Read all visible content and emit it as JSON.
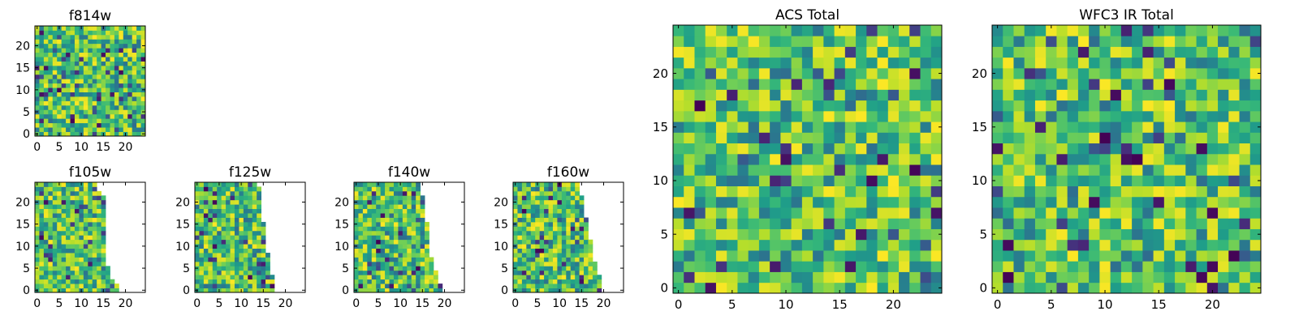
{
  "figure": {
    "background": "#ffffff",
    "colormap": "viridis",
    "colors": {
      "frame": "#000000",
      "masked": "#ffffff"
    }
  },
  "chart_data": [
    {
      "type": "heatmap",
      "title": "f814w",
      "grid_size": [
        25,
        25
      ],
      "xlim": [
        -0.5,
        24.5
      ],
      "ylim": [
        -0.5,
        24.5
      ],
      "xticks": [
        0,
        5,
        10,
        15,
        20
      ],
      "yticks": [
        0,
        5,
        10,
        15,
        20
      ],
      "xlabel": "",
      "ylabel": "",
      "coverage": "full",
      "seed": 814
    },
    {
      "type": "heatmap",
      "title": "f105w",
      "grid_size": [
        25,
        25
      ],
      "xlim": [
        -0.5,
        24.5
      ],
      "ylim": [
        -0.5,
        24.5
      ],
      "xticks": [
        0,
        5,
        10,
        15,
        20
      ],
      "yticks": [
        0,
        5,
        10,
        15,
        20
      ],
      "xlabel": "",
      "ylabel": "",
      "coverage": "partial",
      "max_column_by_row": [
        18,
        18,
        17,
        16,
        16,
        16,
        15,
        15,
        15,
        15,
        15,
        15,
        15,
        15,
        15,
        15,
        15,
        15,
        15,
        15,
        15,
        15,
        14,
        13,
        13
      ],
      "seed": 105
    },
    {
      "type": "heatmap",
      "title": "f125w",
      "grid_size": [
        25,
        25
      ],
      "xlim": [
        -0.5,
        24.5
      ],
      "ylim": [
        -0.5,
        24.5
      ],
      "xticks": [
        0,
        5,
        10,
        15,
        20
      ],
      "yticks": [
        0,
        5,
        10,
        15,
        20
      ],
      "xlabel": "",
      "ylabel": "",
      "coverage": "partial",
      "max_column_by_row": [
        17,
        17,
        17,
        17,
        16,
        16,
        16,
        16,
        16,
        15,
        15,
        15,
        15,
        15,
        15,
        15,
        14,
        14,
        14,
        14,
        14,
        14,
        14,
        14,
        13
      ],
      "seed": 125
    },
    {
      "type": "heatmap",
      "title": "f140w",
      "grid_size": [
        25,
        25
      ],
      "xlim": [
        -0.5,
        24.5
      ],
      "ylim": [
        -0.5,
        24.5
      ],
      "xticks": [
        0,
        5,
        10,
        15,
        20
      ],
      "yticks": [
        0,
        5,
        10,
        15,
        20
      ],
      "xlabel": "",
      "ylabel": "",
      "coverage": "partial",
      "max_column_by_row": [
        19,
        19,
        18,
        18,
        18,
        17,
        17,
        17,
        16,
        16,
        16,
        16,
        16,
        16,
        16,
        16,
        15,
        15,
        15,
        15,
        15,
        15,
        14,
        14,
        14
      ],
      "seed": 140
    },
    {
      "type": "heatmap",
      "title": "f160w",
      "grid_size": [
        25,
        25
      ],
      "xlim": [
        -0.5,
        24.5
      ],
      "ylim": [
        -0.5,
        24.5
      ],
      "xticks": [
        0,
        5,
        10,
        15,
        20
      ],
      "yticks": [
        0,
        5,
        10,
        15,
        20
      ],
      "xlabel": "",
      "ylabel": "",
      "coverage": "partial",
      "max_column_by_row": [
        19,
        19,
        19,
        19,
        18,
        18,
        18,
        17,
        17,
        17,
        17,
        17,
        16,
        16,
        16,
        16,
        16,
        15,
        15,
        15,
        15,
        15,
        14,
        14,
        14
      ],
      "seed": 160
    },
    {
      "type": "heatmap",
      "title": "ACS Total",
      "grid_size": [
        25,
        25
      ],
      "xlim": [
        -0.5,
        24.5
      ],
      "ylim": [
        -0.5,
        24.5
      ],
      "xticks": [
        0,
        5,
        10,
        15,
        20
      ],
      "yticks": [
        0,
        5,
        10,
        15,
        20
      ],
      "xlabel": "",
      "ylabel": "",
      "coverage": "full",
      "seed": 3001
    },
    {
      "type": "heatmap",
      "title": "WFC3 IR Total",
      "grid_size": [
        25,
        25
      ],
      "xlim": [
        -0.5,
        24.5
      ],
      "ylim": [
        -0.5,
        24.5
      ],
      "xticks": [
        0,
        5,
        10,
        15,
        20
      ],
      "yticks": [
        0,
        5,
        10,
        15,
        20
      ],
      "xlabel": "",
      "ylabel": "",
      "coverage": "full",
      "seed": 4002
    }
  ]
}
